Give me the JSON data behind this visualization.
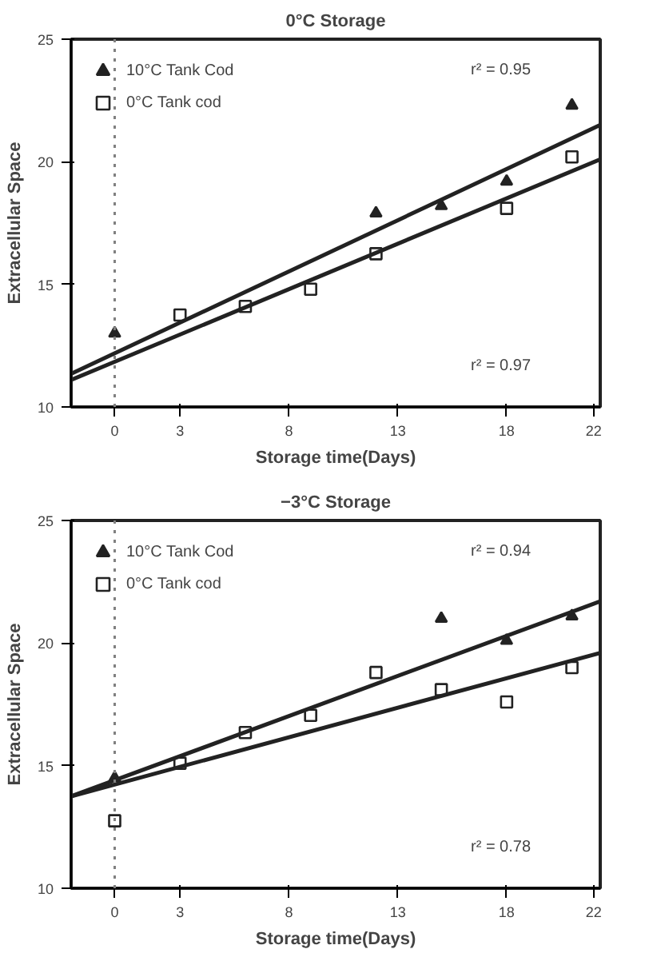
{
  "chart_data": [
    {
      "type": "scatter",
      "title": "0°C Storage",
      "xlabel": "Storage time(Days)",
      "ylabel": "Extracellular Space",
      "xlim": [
        -2,
        22.3
      ],
      "ylim": [
        10,
        25
      ],
      "xticks": [
        0,
        3,
        8,
        13,
        18,
        22
      ],
      "yticks": [
        10,
        15,
        20,
        25
      ],
      "grid": false,
      "legend": "top left",
      "ref_lines": [
        {
          "axis": "x",
          "value": 0,
          "line_style": "dotted",
          "color": "#808080"
        }
      ],
      "annotations": [
        "r² = 0.95",
        "r² = 0.97"
      ],
      "series": [
        {
          "name": "10°C Tank Cod",
          "color": "#222222",
          "marker": "triangle",
          "x": [
            0,
            12,
            15,
            18,
            21
          ],
          "values": [
            13.0,
            17.9,
            18.2,
            19.2,
            22.3
          ]
        },
        {
          "name": "0°C Tank cod",
          "color": "#222222",
          "marker": "square",
          "x": [
            3,
            6,
            9,
            12,
            18,
            21
          ],
          "values": [
            13.75,
            14.1,
            14.8,
            16.25,
            18.1,
            20.2
          ]
        },
        {
          "type": "line",
          "color": "#222222",
          "x": [
            -2,
            22.3
          ],
          "values": [
            11.35,
            21.5
          ]
        },
        {
          "type": "line",
          "color": "#222222",
          "x": [
            -2,
            22.3
          ],
          "values": [
            11.1,
            20.1
          ]
        }
      ]
    },
    {
      "type": "scatter",
      "title": "−3°C Storage",
      "xlabel": "Storage time(Days)",
      "ylabel": "Extracellular Space",
      "xlim": [
        -2,
        22.3
      ],
      "ylim": [
        10,
        25
      ],
      "xticks": [
        0,
        3,
        8,
        13,
        18,
        22
      ],
      "yticks": [
        10,
        15,
        20,
        25
      ],
      "grid": false,
      "legend": "top left",
      "ref_lines": [
        {
          "axis": "x",
          "value": 0,
          "line_style": "dotted",
          "color": "#808080"
        }
      ],
      "annotations": [
        "r² = 0.94",
        "r² = 0.78"
      ],
      "series": [
        {
          "name": "10°C Tank Cod",
          "color": "#222222",
          "marker": "triangle",
          "x": [
            0,
            15,
            18,
            21
          ],
          "values": [
            14.5,
            21.0,
            20.1,
            21.1
          ]
        },
        {
          "name": "0°C Tank cod",
          "color": "#222222",
          "marker": "square",
          "x": [
            0,
            3,
            6,
            9,
            12,
            15,
            18,
            21
          ],
          "values": [
            12.75,
            15.1,
            16.35,
            17.05,
            18.8,
            18.1,
            17.6,
            19.0
          ]
        },
        {
          "type": "line",
          "color": "#222222",
          "x": [
            -2,
            22.3
          ],
          "values": [
            13.75,
            21.7
          ]
        },
        {
          "type": "line",
          "color": "#222222",
          "x": [
            -2,
            22.3
          ],
          "values": [
            13.75,
            19.6
          ]
        }
      ]
    }
  ]
}
